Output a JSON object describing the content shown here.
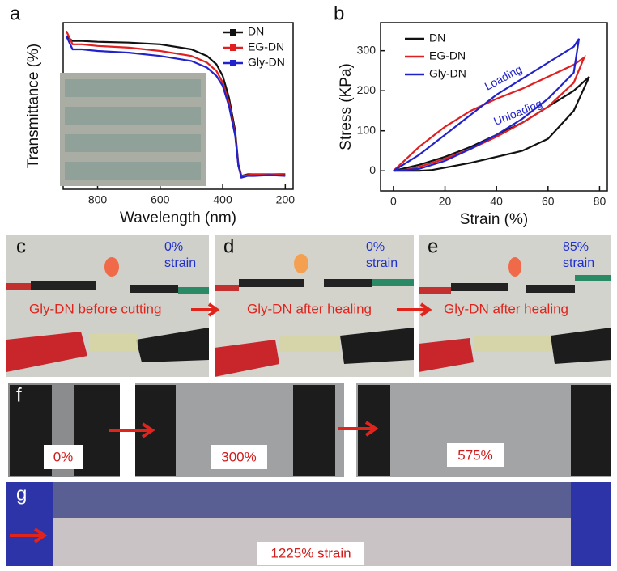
{
  "panels": {
    "a": "a",
    "b": "b",
    "c": "c",
    "d": "d",
    "e": "e",
    "f": "f",
    "g": "g"
  },
  "chart_data": [
    {
      "type": "line",
      "xlabel": "Wavelength (nm)",
      "ylabel": "Transmittance (%)",
      "x": [
        900,
        880,
        850,
        800,
        700,
        600,
        500,
        450,
        420,
        400,
        380,
        360,
        350,
        340,
        320,
        300,
        250,
        200
      ],
      "series": [
        {
          "name": "DN",
          "color": "#111111",
          "values": [
            92,
            89,
            89,
            88.5,
            88,
            87,
            84,
            80,
            75,
            68,
            55,
            35,
            15,
            8,
            9,
            9,
            9,
            9
          ]
        },
        {
          "name": "EG-DN",
          "color": "#e02020",
          "values": [
            95,
            87,
            87,
            86,
            85,
            83,
            80,
            76,
            71,
            64,
            52,
            33,
            14,
            8,
            8.5,
            9,
            9,
            8.5
          ]
        },
        {
          "name": "Gly-DN",
          "color": "#2222cc",
          "values": [
            92,
            84,
            84,
            83,
            82,
            80,
            77,
            73,
            68,
            62,
            50,
            32,
            14,
            7,
            8,
            8,
            8.5,
            8
          ]
        }
      ],
      "xlim": [
        910,
        175
      ],
      "ylim": [
        0,
        100
      ],
      "xticks": [
        800,
        600,
        400,
        200
      ],
      "legend": "top right"
    },
    {
      "type": "line",
      "xlabel": "Strain (%)",
      "ylabel": "Stress (KPa)",
      "series": [
        {
          "name": "DN",
          "color": "#111111",
          "x": [
            0,
            10,
            20,
            30,
            40,
            50,
            60,
            70,
            76,
            70,
            60,
            50,
            40,
            30,
            20,
            15,
            10,
            5,
            0
          ],
          "values": [
            0,
            15,
            35,
            60,
            90,
            120,
            160,
            200,
            235,
            150,
            80,
            50,
            35,
            20,
            8,
            2,
            0,
            0,
            0
          ]
        },
        {
          "name": "EG-DN",
          "color": "#e02020",
          "x": [
            0,
            5,
            10,
            20,
            30,
            40,
            50,
            60,
            70,
            74,
            70,
            60,
            50,
            40,
            30,
            20,
            10,
            5,
            0
          ],
          "values": [
            0,
            30,
            60,
            110,
            150,
            180,
            205,
            235,
            265,
            283,
            220,
            160,
            120,
            85,
            55,
            30,
            10,
            3,
            0
          ]
        },
        {
          "name": "Gly-DN",
          "color": "#2222cc",
          "x": [
            0,
            10,
            20,
            30,
            40,
            50,
            60,
            70,
            72,
            70,
            60,
            50,
            40,
            30,
            20,
            10,
            0
          ],
          "values": [
            0,
            40,
            90,
            140,
            190,
            230,
            270,
            310,
            330,
            245,
            180,
            130,
            90,
            55,
            25,
            5,
            0
          ]
        }
      ],
      "annotations": [
        "Loading",
        "Unloading"
      ],
      "xlim": [
        -5,
        83
      ],
      "ylim": [
        -50,
        370
      ],
      "xticks": [
        0,
        20,
        40,
        60,
        80
      ],
      "yticks": [
        0,
        100,
        200,
        300
      ],
      "legend": "top left"
    }
  ],
  "photos_cde": [
    {
      "strain": "0%",
      "strain_word": "strain",
      "caption": "Gly-DN before cutting"
    },
    {
      "strain": "0%",
      "strain_word": "strain",
      "caption": "Gly-DN after healing"
    },
    {
      "strain": "85%",
      "strain_word": "strain",
      "caption": "Gly-DN after healing"
    }
  ],
  "photos_f": [
    "0%",
    "300%",
    "575%"
  ],
  "photo_g": {
    "label": "1225% strain"
  }
}
